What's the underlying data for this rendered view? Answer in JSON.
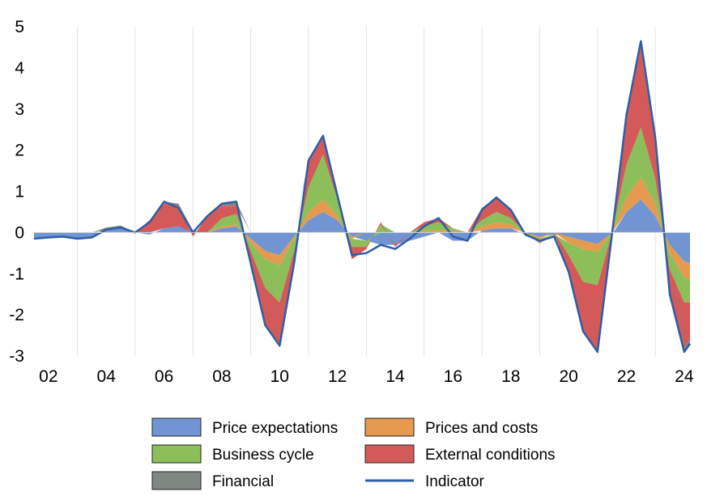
{
  "chart_data": {
    "type": "area",
    "title": "",
    "xlabel": "",
    "ylabel": "",
    "x_range": [
      2001.5,
      2024.2
    ],
    "ylim": [
      -3,
      5
    ],
    "yticks": [
      "5",
      "4",
      "3",
      "2",
      "1",
      "0",
      "-1",
      "-2",
      "-3"
    ],
    "xticks": [
      "02",
      "04",
      "06",
      "08",
      "10",
      "12",
      "14",
      "16",
      "18",
      "20",
      "22",
      "24"
    ],
    "grid": "vertical",
    "legend_position": "bottom",
    "x": [
      2001.5,
      2002.0,
      2002.5,
      2003.0,
      2003.5,
      2004.0,
      2004.5,
      2005.0,
      2005.5,
      2006.0,
      2006.5,
      2007.0,
      2007.5,
      2008.0,
      2008.5,
      2009.0,
      2009.5,
      2010.0,
      2010.5,
      2011.0,
      2011.5,
      2012.0,
      2012.5,
      2013.0,
      2013.5,
      2014.0,
      2014.5,
      2015.0,
      2015.5,
      2016.0,
      2016.5,
      2017.0,
      2017.5,
      2018.0,
      2018.5,
      2019.0,
      2019.5,
      2020.0,
      2020.5,
      2021.0,
      2021.5,
      2022.0,
      2022.5,
      2023.0,
      2023.5,
      2024.0,
      2024.2
    ],
    "series": [
      {
        "name": "Price expectations",
        "color": "#7195D3",
        "values": [
          -0.15,
          -0.12,
          -0.1,
          -0.15,
          -0.12,
          0.05,
          0.1,
          0.0,
          -0.05,
          0.1,
          0.15,
          0.05,
          0.0,
          0.1,
          0.15,
          -0.15,
          -0.45,
          -0.55,
          -0.1,
          0.3,
          0.5,
          0.3,
          -0.1,
          -0.2,
          -0.3,
          -0.3,
          -0.2,
          -0.1,
          0.0,
          -0.2,
          -0.2,
          0.05,
          0.1,
          0.1,
          -0.05,
          -0.1,
          -0.05,
          -0.1,
          -0.2,
          -0.28,
          -0.05,
          0.5,
          0.8,
          0.4,
          -0.3,
          -0.7,
          -0.75
        ]
      },
      {
        "name": "Prices and costs",
        "color": "#E59A4F",
        "values": [
          0.0,
          0.0,
          0.0,
          0.0,
          0.0,
          0.02,
          0.02,
          0.0,
          0.0,
          0.0,
          0.0,
          0.0,
          0.0,
          0.05,
          0.05,
          -0.1,
          -0.2,
          -0.25,
          -0.05,
          0.2,
          0.3,
          0.1,
          -0.05,
          0.0,
          0.0,
          0.0,
          0.0,
          0.05,
          0.05,
          0.05,
          0.0,
          0.1,
          0.15,
          0.1,
          0.0,
          -0.05,
          0.0,
          -0.15,
          -0.2,
          -0.2,
          0.0,
          0.35,
          0.55,
          0.3,
          -0.2,
          -0.4,
          -0.4
        ]
      },
      {
        "name": "Business cycle",
        "color": "#8CBF5A",
        "values": [
          0.0,
          0.0,
          0.0,
          0.0,
          0.0,
          0.0,
          0.0,
          0.0,
          0.0,
          0.0,
          0.0,
          0.0,
          0.0,
          0.2,
          0.25,
          -0.2,
          -0.7,
          -0.9,
          -0.3,
          0.6,
          1.1,
          0.4,
          -0.2,
          -0.15,
          0.2,
          0.0,
          0.0,
          0.1,
          0.2,
          0.05,
          0.0,
          0.15,
          0.25,
          0.15,
          0.0,
          -0.1,
          -0.05,
          -0.3,
          -0.8,
          -0.8,
          0.0,
          0.8,
          1.2,
          0.6,
          -0.4,
          -0.6,
          -0.55
        ]
      },
      {
        "name": "External conditions",
        "color": "#D45A5A",
        "values": [
          0.0,
          0.0,
          0.0,
          0.0,
          0.0,
          0.0,
          0.0,
          0.0,
          0.3,
          0.6,
          0.5,
          -0.1,
          0.4,
          0.3,
          0.2,
          -0.3,
          -0.9,
          -1.0,
          -0.3,
          0.6,
          0.4,
          0.1,
          -0.3,
          -0.05,
          0.05,
          -0.05,
          0.0,
          0.1,
          0.1,
          0.0,
          0.0,
          0.3,
          0.35,
          0.2,
          0.0,
          -0.02,
          0.0,
          -0.4,
          -1.2,
          -1.6,
          0.0,
          1.2,
          2.1,
          1.0,
          -0.6,
          -1.1,
          -0.9
        ]
      },
      {
        "name": "Financial",
        "color": "#7F8783",
        "values": [
          0.0,
          0.0,
          0.0,
          0.0,
          0.0,
          0.05,
          0.05,
          0.0,
          0.0,
          0.05,
          0.05,
          0.0,
          0.0,
          0.05,
          0.1,
          0.0,
          0.0,
          -0.05,
          0.0,
          0.05,
          0.05,
          0.0,
          0.0,
          0.0,
          0.0,
          0.0,
          0.0,
          0.0,
          0.0,
          0.0,
          0.0,
          0.0,
          0.0,
          0.0,
          0.0,
          0.0,
          0.0,
          0.0,
          0.0,
          0.0,
          0.0,
          0.0,
          0.0,
          0.0,
          0.0,
          -0.1,
          -0.1
        ]
      }
    ],
    "line_series": {
      "name": "Indicator",
      "color": "#2E5DA8",
      "values": [
        -0.15,
        -0.12,
        -0.1,
        -0.15,
        -0.12,
        0.07,
        0.12,
        0.0,
        0.25,
        0.75,
        0.6,
        0.0,
        0.4,
        0.7,
        0.75,
        -0.75,
        -2.25,
        -2.75,
        -0.75,
        1.75,
        2.35,
        0.9,
        -0.55,
        -0.5,
        -0.3,
        -0.4,
        -0.15,
        0.15,
        0.35,
        -0.1,
        -0.2,
        0.55,
        0.85,
        0.55,
        -0.05,
        -0.2,
        -0.1,
        -0.95,
        -2.4,
        -2.9,
        -0.05,
        2.85,
        4.65,
        2.3,
        -1.5,
        -2.9,
        -2.7
      ]
    },
    "legend": [
      {
        "label": "Price expectations",
        "kind": "box",
        "color": "#7195D3"
      },
      {
        "label": "Prices and costs",
        "kind": "box",
        "color": "#E59A4F"
      },
      {
        "label": "Business cycle",
        "kind": "box",
        "color": "#8CBF5A"
      },
      {
        "label": "External conditions",
        "kind": "box",
        "color": "#D45A5A"
      },
      {
        "label": "Financial",
        "kind": "box",
        "color": "#7F8783"
      },
      {
        "label": "Indicator",
        "kind": "line",
        "color": "#2E5DA8"
      }
    ]
  }
}
